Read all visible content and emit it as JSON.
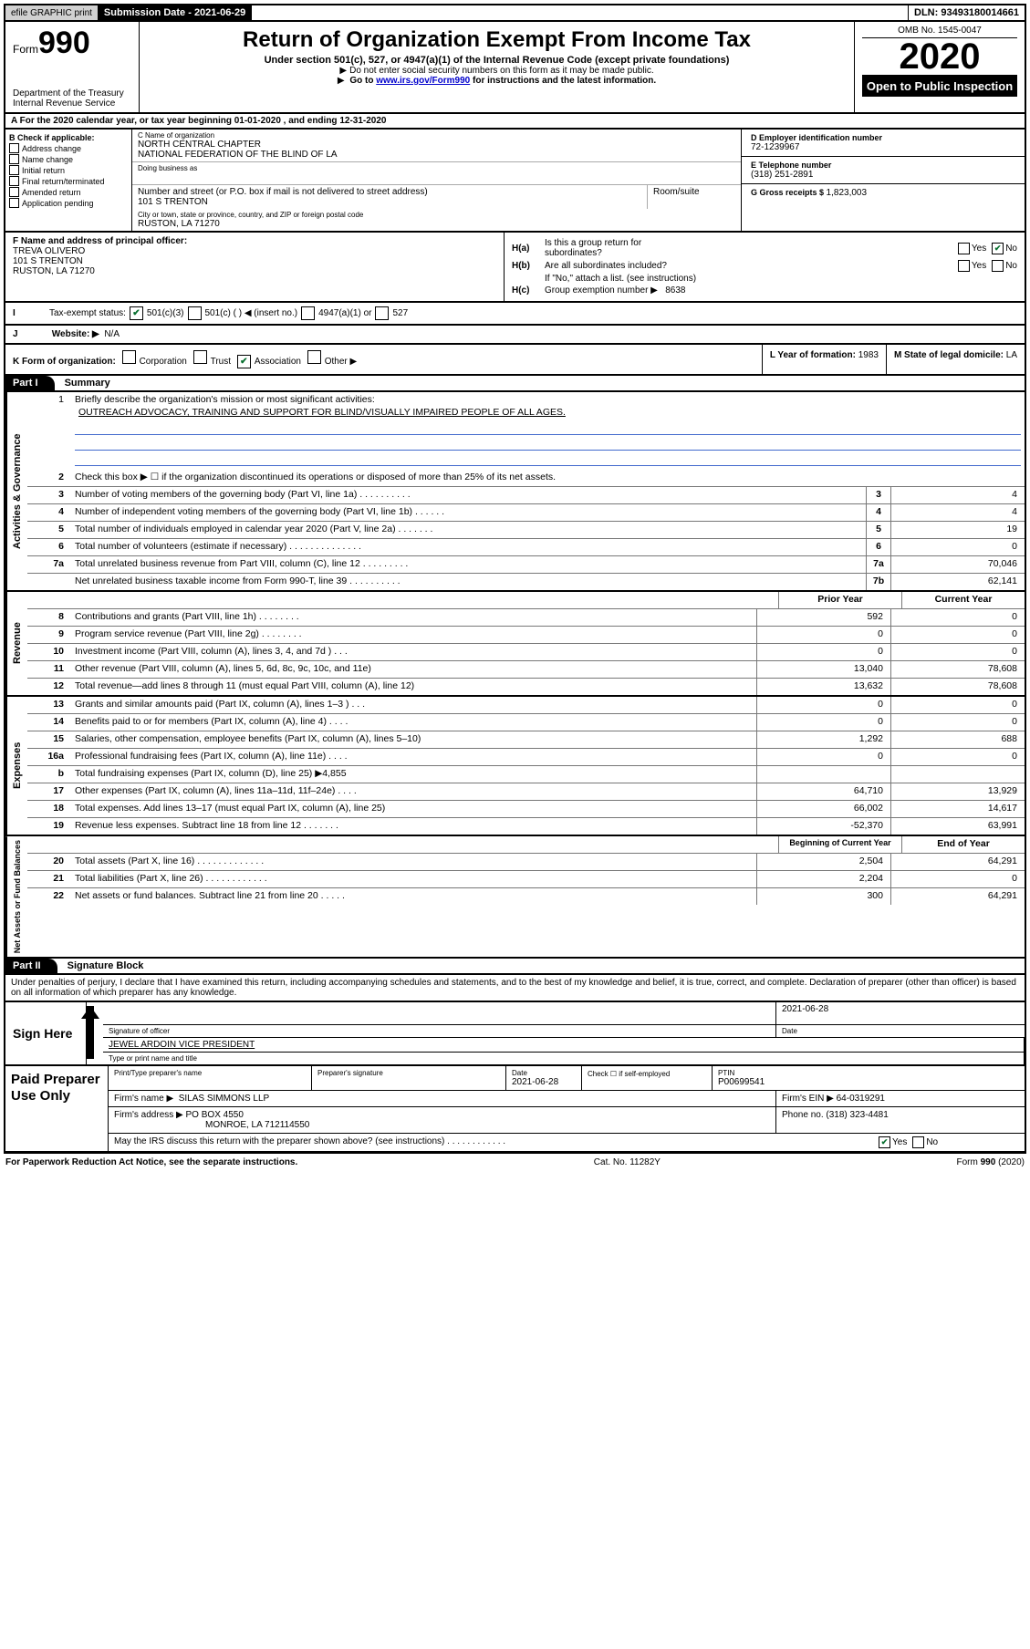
{
  "topbar": {
    "graphic": "efile GRAPHIC print",
    "submission": "Submission Date - 2021-06-29",
    "dln": "DLN: 93493180014661"
  },
  "header": {
    "form_prefix": "Form",
    "form_num": "990",
    "dept1": "Department of the Treasury",
    "dept2": "Internal Revenue Service",
    "title": "Return of Organization Exempt From Income Tax",
    "sub1": "Under section 501(c), 527, or 4947(a)(1) of the Internal Revenue Code (except private foundations)",
    "sub2": "Do not enter social security numbers on this form as it may be made public.",
    "sub3a": "Go to ",
    "sub3_link": "www.irs.gov/Form990",
    "sub3b": " for instructions and the latest information.",
    "omb": "OMB No. 1545-0047",
    "year": "2020",
    "open": "Open to Public Inspection"
  },
  "rowA": "A For the 2020 calendar year, or tax year beginning 01-01-2020   , and ending 12-31-2020",
  "B": {
    "lbl": "B Check if applicable:",
    "opts": [
      "Address change",
      "Name change",
      "Initial return",
      "Final return/terminated",
      "Amended return",
      "Application pending"
    ]
  },
  "C": {
    "name_lbl": "C Name of organization",
    "name1": "NORTH CENTRAL CHAPTER",
    "name2": "NATIONAL FEDERATION OF THE BLIND OF LA",
    "dba_lbl": "Doing business as",
    "street_lbl": "Number and street (or P.O. box if mail is not delivered to street address)",
    "room_lbl": "Room/suite",
    "street": "101 S TRENTON",
    "city_lbl": "City or town, state or province, country, and ZIP or foreign postal code",
    "city": "RUSTON, LA  71270"
  },
  "DG": {
    "d_lbl": "D Employer identification number",
    "d_val": "72-1239967",
    "e_lbl": "E Telephone number",
    "e_val": "(318) 251-2891",
    "g_lbl": "G Gross receipts $ ",
    "g_val": "1,823,003"
  },
  "F": {
    "lbl": "F  Name and address of principal officer:",
    "name": "TREVA OLIVERO",
    "addr1": "101 S TRENTON",
    "addr2": "RUSTON, LA  71270"
  },
  "H": {
    "a1": "Is this a group return for",
    "a2": "subordinates?",
    "b1": "Are all subordinates included?",
    "note": "If \"No,\" attach a list. (see instructions)",
    "c_lbl": "Group exemption number ▶",
    "c_val": "8638",
    "yes": "Yes",
    "no": "No"
  },
  "I": {
    "lbl": "Tax-exempt status:",
    "o1": "501(c)(3)",
    "o2": "501(c) (   ) ◀ (insert no.)",
    "o3": "4947(a)(1) or",
    "o4": "527"
  },
  "J": {
    "lbl": "Website: ▶",
    "val": "N/A"
  },
  "K": {
    "lbl": "K Form of organization:",
    "o1": "Corporation",
    "o2": "Trust",
    "o3": "Association",
    "o4": "Other ▶"
  },
  "L": {
    "lbl": "L Year of formation:",
    "val": "1983"
  },
  "M": {
    "lbl": "M State of legal domicile:",
    "val": "LA"
  },
  "parts": {
    "p1": "Part I",
    "p1_title": "Summary",
    "p2": "Part II",
    "p2_title": "Signature Block"
  },
  "vtabs": {
    "gov": "Activities & Governance",
    "rev": "Revenue",
    "exp": "Expenses",
    "net": "Net Assets or Fund Balances"
  },
  "q1": {
    "num": "1",
    "text": "Briefly describe the organization's mission or most significant activities:",
    "val": "OUTREACH ADVOCACY, TRAINING AND SUPPORT FOR BLIND/VISUALLY IMPAIRED PEOPLE OF ALL AGES."
  },
  "gov_rows": [
    {
      "num": "2",
      "text": "Check this box ▶ ☐  if the organization discontinued its operations or disposed of more than 25% of its net assets."
    },
    {
      "num": "3",
      "text": "Number of voting members of the governing body (Part VI, line 1a)  .    .    .    .    .    .    .    .    .    .",
      "box": "3",
      "val": "4"
    },
    {
      "num": "4",
      "text": "Number of independent voting members of the governing body (Part VI, line 1b)   .    .    .    .    .    .",
      "box": "4",
      "val": "4"
    },
    {
      "num": "5",
      "text": "Total number of individuals employed in calendar year 2020 (Part V, line 2a)   .    .    .    .    .    .    .",
      "box": "5",
      "val": "19"
    },
    {
      "num": "6",
      "text": "Total number of volunteers (estimate if necessary)   .    .    .    .    .    .    .    .    .    .    .    .    .    .",
      "box": "6",
      "val": "0"
    },
    {
      "num": "7a",
      "text": "Total unrelated business revenue from Part VIII, column (C), line 12   .    .    .    .    .    .    .    .    .",
      "box": "7a",
      "val": "70,046"
    },
    {
      "num": "",
      "text": "Net unrelated business taxable income from Form 990-T, line 39   .    .    .    .    .    .    .    .    .    .",
      "box": "7b",
      "val": "62,141"
    }
  ],
  "cols": {
    "prior": "Prior Year",
    "current": "Current Year",
    "boy": "Beginning of Current Year",
    "eoy": "End of Year"
  },
  "rev_rows": [
    {
      "num": "8",
      "text": "Contributions and grants (Part VIII, line 1h)   .    .    .    .    .    .    .    .",
      "p": "592",
      "c": "0"
    },
    {
      "num": "9",
      "text": "Program service revenue (Part VIII, line 2g)   .    .    .    .    .    .    .    .",
      "p": "0",
      "c": "0"
    },
    {
      "num": "10",
      "text": "Investment income (Part VIII, column (A), lines 3, 4, and 7d )    .    .    .",
      "p": "0",
      "c": "0"
    },
    {
      "num": "11",
      "text": "Other revenue (Part VIII, column (A), lines 5, 6d, 8c, 9c, 10c, and 11e)",
      "p": "13,040",
      "c": "78,608"
    },
    {
      "num": "12",
      "text": "Total revenue—add lines 8 through 11 (must equal Part VIII, column (A), line 12)",
      "p": "13,632",
      "c": "78,608"
    }
  ],
  "exp_rows": [
    {
      "num": "13",
      "text": "Grants and similar amounts paid (Part IX, column (A), lines 1–3 )   .    .    .",
      "p": "0",
      "c": "0"
    },
    {
      "num": "14",
      "text": "Benefits paid to or for members (Part IX, column (A), line 4)    .    .    .    .",
      "p": "0",
      "c": "0"
    },
    {
      "num": "15",
      "text": "Salaries, other compensation, employee benefits (Part IX, column (A), lines 5–10)",
      "p": "1,292",
      "c": "688"
    },
    {
      "num": "16a",
      "text": "Professional fundraising fees (Part IX, column (A), line 11e)   .    .    .    .",
      "p": "0",
      "c": "0"
    },
    {
      "num": "b",
      "text": "Total fundraising expenses (Part IX, column (D), line 25) ▶4,855",
      "p": "",
      "c": ""
    },
    {
      "num": "17",
      "text": "Other expenses (Part IX, column (A), lines 11a–11d, 11f–24e)   .    .    .    .",
      "p": "64,710",
      "c": "13,929"
    },
    {
      "num": "18",
      "text": "Total expenses. Add lines 13–17 (must equal Part IX, column (A), line 25)",
      "p": "66,002",
      "c": "14,617"
    },
    {
      "num": "19",
      "text": "Revenue less expenses. Subtract line 18 from line 12   .    .    .    .    .    .    .",
      "p": "-52,370",
      "c": "63,991"
    }
  ],
  "net_rows": [
    {
      "num": "20",
      "text": "Total assets (Part X, line 16)   .    .    .    .    .    .    .    .    .    .    .    .    .",
      "p": "2,504",
      "c": "64,291"
    },
    {
      "num": "21",
      "text": "Total liabilities (Part X, line 26)   .    .    .    .    .    .    .    .    .    .    .    .",
      "p": "2,204",
      "c": "0"
    },
    {
      "num": "22",
      "text": "Net assets or fund balances. Subtract line 21 from line 20   .    .    .    .    .",
      "p": "300",
      "c": "64,291"
    }
  ],
  "sig_intro": "Under penalties of perjury, I declare that I have examined this return, including accompanying schedules and statements, and to the best of my knowledge and belief, it is true, correct, and complete. Declaration of preparer (other than officer) is based on all information of which preparer has any knowledge.",
  "sign": {
    "here": "Sign Here",
    "officer_lbl": "Signature of officer",
    "date_lbl": "Date",
    "date": "2021-06-28",
    "name": "JEWEL ARDOIN  VICE PRESIDENT",
    "name_lbl": "Type or print name and title"
  },
  "prep": {
    "title": "Paid Preparer Use Only",
    "h1": "Print/Type preparer's name",
    "h2": "Preparer's signature",
    "h3": "Date",
    "h3v": "2021-06-28",
    "h4a": "Check ☐ if self-employed",
    "h5": "PTIN",
    "h5v": "P00699541",
    "firm_lbl": "Firm's name   ▶",
    "firm": "SILAS SIMMONS LLP",
    "ein_lbl": "Firm's EIN ▶",
    "ein": "64-0319291",
    "addr_lbl": "Firm's address ▶",
    "addr1": "PO BOX 4550",
    "addr2": "MONROE, LA  712114550",
    "phone_lbl": "Phone no.",
    "phone": "(318) 323-4481",
    "discuss": "May the IRS discuss this return with the preparer shown above? (see instructions)   .    .    .    .    .    .    .    .    .    .    .    ."
  },
  "footer": {
    "left": "For Paperwork Reduction Act Notice, see the separate instructions.",
    "mid": "Cat. No. 11282Y",
    "right": "Form 990 (2020)"
  }
}
